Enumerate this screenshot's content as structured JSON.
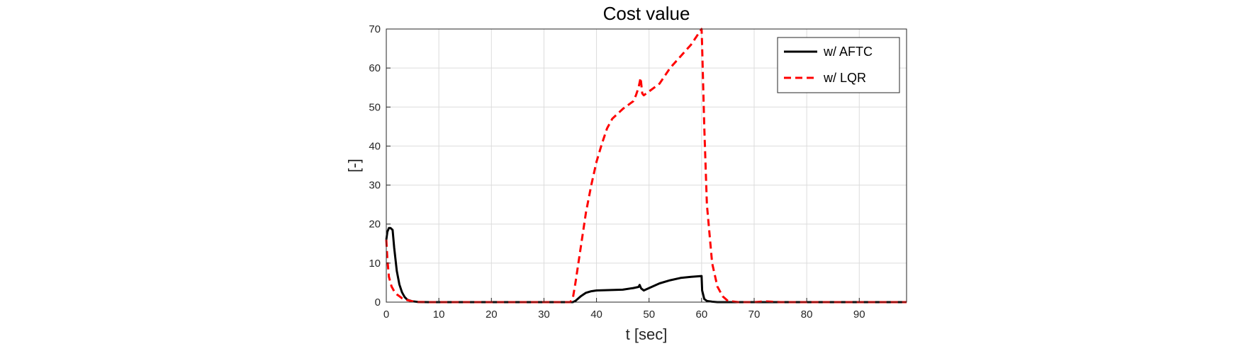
{
  "chart_data": {
    "type": "line",
    "title": "Cost value",
    "xlabel": "t [sec]",
    "ylabel": "[-]",
    "xlim": [
      0,
      99
    ],
    "ylim": [
      0,
      70
    ],
    "xticks": [
      "0",
      "10",
      "20",
      "30",
      "40",
      "50",
      "60",
      "70",
      "80",
      "90"
    ],
    "yticks": [
      "0",
      "10",
      "20",
      "30",
      "40",
      "50",
      "60",
      "70"
    ],
    "grid": true,
    "legend_position": "top-right",
    "series": [
      {
        "name": "w/ AFTC",
        "color": "#000000",
        "style": "solid",
        "x": [
          0,
          0.2,
          0.5,
          0.8,
          1.2,
          1.5,
          2,
          2.5,
          3,
          3.5,
          4,
          5,
          6,
          8,
          20,
          34,
          35.5,
          36,
          37,
          38,
          39,
          40,
          45,
          47,
          48,
          48.2,
          48.5,
          49,
          50,
          52,
          54,
          56,
          58,
          60,
          60.1,
          60.5,
          61,
          62,
          63,
          65,
          70,
          99
        ],
        "y": [
          16,
          18,
          19,
          19,
          18.5,
          14,
          8,
          4.5,
          2.5,
          1.3,
          0.6,
          0.2,
          0.05,
          0,
          0,
          0,
          0,
          0.3,
          1.5,
          2.4,
          2.8,
          3,
          3.2,
          3.6,
          3.9,
          4.4,
          3.5,
          3,
          3.6,
          4.8,
          5.6,
          6.2,
          6.5,
          6.7,
          3,
          0.8,
          0.3,
          0.1,
          0,
          0,
          0,
          0
        ]
      },
      {
        "name": "w/ LQR",
        "color": "#ff0000",
        "style": "dashed",
        "x": [
          0,
          0.2,
          0.5,
          1,
          1.5,
          2,
          2.5,
          3,
          4,
          5,
          6,
          8,
          20,
          35,
          35.5,
          36,
          37,
          38,
          39,
          40,
          41,
          42,
          43,
          45,
          47,
          47.5,
          48,
          48.4,
          48.7,
          49,
          50,
          52,
          54,
          56,
          58,
          60,
          60.05,
          60.5,
          61,
          62,
          63,
          64,
          65,
          67,
          70,
          72,
          75,
          99
        ],
        "y": [
          16,
          11,
          6.5,
          4,
          2.8,
          2,
          1.5,
          1,
          0.5,
          0.2,
          0.05,
          0,
          0,
          0,
          1,
          5,
          14,
          23,
          30,
          36,
          40.5,
          44.5,
          47,
          49.5,
          51.5,
          53,
          55,
          57.5,
          53.5,
          53,
          54,
          56,
          60,
          63,
          66,
          70,
          68,
          45,
          25,
          10,
          4,
          1.5,
          0.3,
          0,
          0,
          0.2,
          0,
          0
        ]
      }
    ]
  }
}
